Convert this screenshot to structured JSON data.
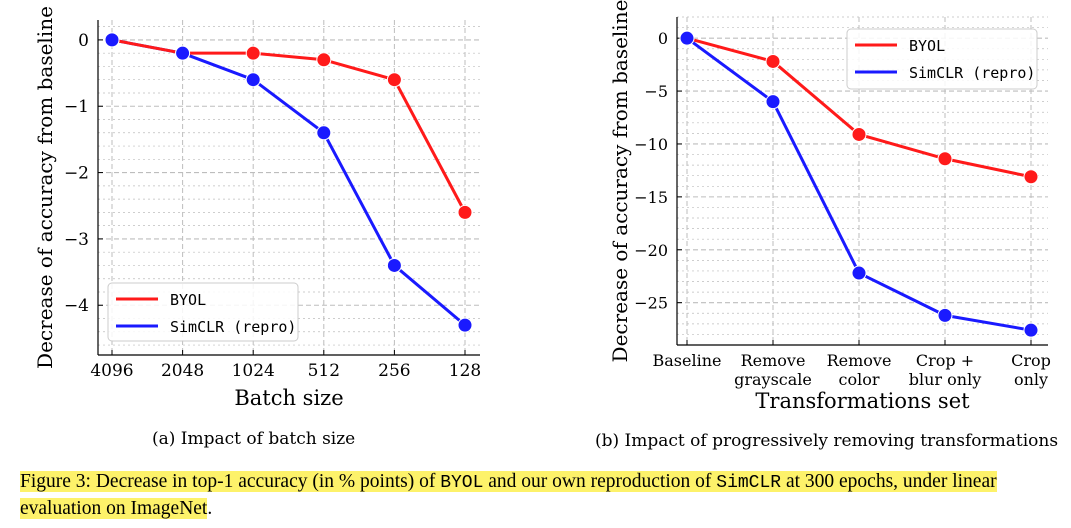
{
  "colors": {
    "byol": "#ff1a1a",
    "simclr": "#1a1aff",
    "grid": "#bdbdbd",
    "highlight": "#fdf26a"
  },
  "chart_data": [
    {
      "type": "line",
      "categories": [
        "4096",
        "2048",
        "1024",
        "512",
        "256",
        "128"
      ],
      "series": [
        {
          "name": "BYOL",
          "values": [
            0,
            -0.2,
            -0.2,
            -0.3,
            -0.6,
            -2.6
          ]
        },
        {
          "name": "SimCLR (repro)",
          "values": [
            0,
            -0.2,
            -0.6,
            -1.4,
            -3.4,
            -4.3
          ]
        }
      ],
      "title": "",
      "xlabel": "Batch size",
      "ylabel": "Decrease of accuracy from baseline",
      "ylim": [
        -4.75,
        0.3
      ],
      "yticks": [
        0,
        -1,
        -2,
        -3,
        -4
      ],
      "ytick_labels": [
        "0",
        "−1",
        "−2",
        "−3",
        "−4"
      ],
      "grid": true,
      "legend_position": "bottom-left",
      "subcaption": "(a) Impact of batch size"
    },
    {
      "type": "line",
      "categories": [
        "Baseline",
        "Remove\ngrayscale",
        "Remove\ncolor",
        "Crop +\nblur only",
        "Crop\nonly"
      ],
      "series": [
        {
          "name": "BYOL",
          "values": [
            0,
            -2.2,
            -9.1,
            -11.4,
            -13.1
          ]
        },
        {
          "name": "SimCLR (repro)",
          "values": [
            0,
            -6.0,
            -22.2,
            -26.2,
            -27.6
          ]
        }
      ],
      "title": "",
      "xlabel": "Transformations set",
      "ylabel": "Decrease of accuracy from baseline",
      "ylim": [
        -29,
        2
      ],
      "yticks": [
        0,
        -5,
        -10,
        -15,
        -20,
        -25
      ],
      "ytick_labels": [
        "0",
        "−5",
        "−10",
        "−15",
        "−20",
        "−25"
      ],
      "grid": true,
      "legend_position": "top-right",
      "subcaption": "(b) Impact of progressively removing transformations"
    }
  ],
  "caption": {
    "prefix": "Figure 3: Decrease in top-1 accuracy (in % points) of ",
    "byol": "BYOL",
    "middle": " and our own reproduction of ",
    "simclr": "SimCLR",
    "suffix": " at 300 epochs, under linear evaluation on ImageNet",
    "end": "."
  }
}
